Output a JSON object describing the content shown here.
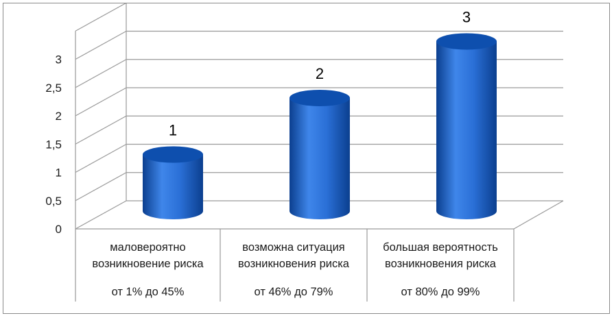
{
  "chart_data": {
    "type": "bar",
    "style": "3d-cylinder",
    "categories": [
      {
        "lines": [
          "маловероятно",
          "возникновение риска"
        ],
        "range": "от 1% до 45%"
      },
      {
        "lines": [
          "возможна ситуация",
          "возникновения риска"
        ],
        "range": "от 46% до 79%"
      },
      {
        "lines": [
          "большая вероятность",
          "возникновения риска"
        ],
        "range": "от 80% до 99%"
      }
    ],
    "values": [
      1,
      2,
      3
    ],
    "data_labels": [
      "1",
      "2",
      "3"
    ],
    "y_ticks": [
      "0",
      "0,5",
      "1",
      "1,5",
      "2",
      "2,5",
      "3"
    ],
    "y_tick_values": [
      0,
      0.5,
      1,
      1.5,
      2,
      2.5,
      3
    ],
    "ylim": [
      0,
      3.5
    ],
    "grid": true,
    "legend": "none",
    "colors": {
      "bar_dark": "#0b3f8f",
      "bar_mid": "#2a6fd6",
      "bar_light": "#3f86ea",
      "bar_top": "#0e4fae",
      "grid": "#9a9a9a"
    }
  }
}
